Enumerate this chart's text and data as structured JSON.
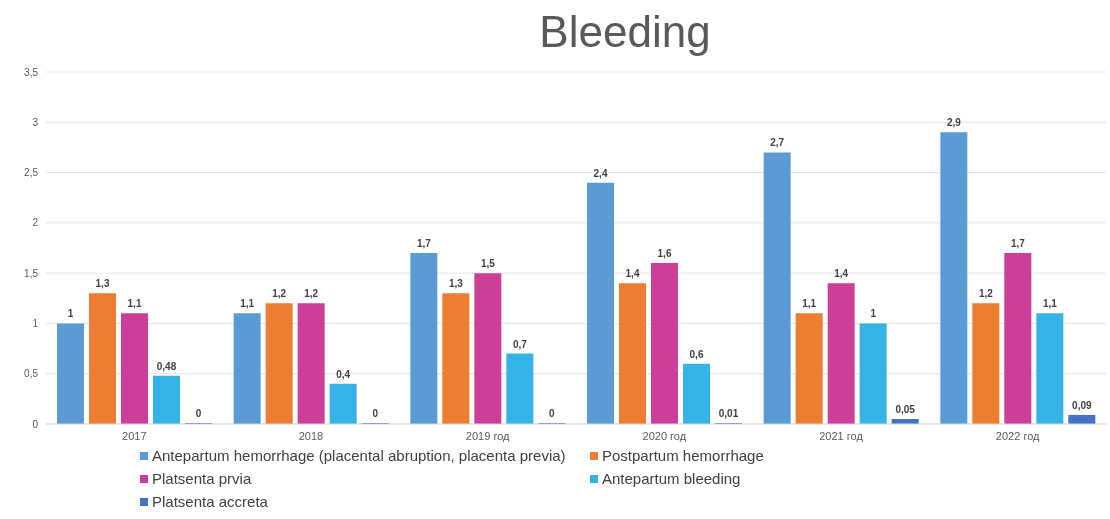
{
  "chart_data": {
    "type": "bar",
    "title": "Bleeding",
    "categories": [
      "2017",
      "2018",
      "2019 год",
      "2020 год",
      "2021 год",
      "2022 год"
    ],
    "series": [
      {
        "name": "Antepartum hemorrhage (placental abruption, placenta previa)",
        "color": "#5b9bd5",
        "values": [
          1,
          1.1,
          1.7,
          2.4,
          2.7,
          2.9
        ],
        "value_labels": [
          "1",
          "1,1",
          "1,7",
          "2,4",
          "2,7",
          "2,9"
        ]
      },
      {
        "name": "Postpartum hemorrhage",
        "color": "#ed7d31",
        "values": [
          1.3,
          1.2,
          1.3,
          1.4,
          1.1,
          1.2
        ],
        "value_labels": [
          "1,3",
          "1,2",
          "1,3",
          "1,4",
          "1,1",
          "1,2"
        ]
      },
      {
        "name": "Platsenta prvia",
        "color": "#cc3f99",
        "values": [
          1.1,
          1.2,
          1.5,
          1.6,
          1.4,
          1.7
        ],
        "value_labels": [
          "1,1",
          "1,2",
          "1,5",
          "1,6",
          "1,4",
          "1,7"
        ]
      },
      {
        "name": "Antepartum bleeding",
        "color": "#35b3e6",
        "values": [
          0.48,
          0.4,
          0.7,
          0.6,
          1,
          1.1
        ],
        "value_labels": [
          "0,48",
          "0,4",
          "0,7",
          "0,6",
          "1",
          "1,1"
        ]
      },
      {
        "name": "Platsenta accreta",
        "color": "#4472c4",
        "values": [
          0,
          0,
          0,
          0.01,
          0.05,
          0.09
        ],
        "value_labels": [
          "0",
          "0",
          "0",
          "0,01",
          "0,05",
          "0,09"
        ]
      }
    ],
    "ylim": [
      0,
      3.5
    ],
    "yticks": [
      0,
      {
        "value": 0.5,
        "label": "0,5"
      },
      1,
      {
        "value": 1.5,
        "label": "1,5"
      },
      2,
      {
        "value": 2.5,
        "label": "2,5"
      },
      3,
      {
        "value": 3.5,
        "label": "3,5"
      }
    ],
    "grid": "y",
    "legend": "bottom"
  }
}
